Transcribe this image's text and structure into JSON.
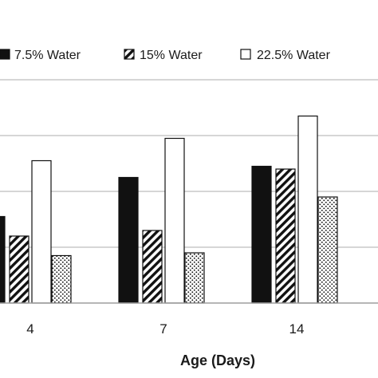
{
  "chart_data": {
    "type": "bar",
    "categories": [
      "4",
      "7",
      "14"
    ],
    "series": [
      {
        "name": "7.5% Water",
        "values": [
          1.55,
          2.25,
          2.45
        ],
        "pattern": "solid"
      },
      {
        "name": "15% Water",
        "values": [
          1.2,
          1.3,
          2.4
        ],
        "pattern": "hatch"
      },
      {
        "name": "22.5% Water",
        "values": [
          2.55,
          2.95,
          3.35
        ],
        "pattern": "open"
      },
      {
        "name": "",
        "values": [
          0.85,
          0.9,
          1.9
        ],
        "pattern": "dots"
      }
    ],
    "xlabel": "Age (Days)",
    "ylabel": "",
    "ylim": [
      0,
      4
    ],
    "grid": true,
    "legend": "top",
    "colors": {
      "solid": "#111111",
      "outline": "#111111",
      "gridline": "#bdbdbd",
      "background": "#ffffff"
    }
  }
}
